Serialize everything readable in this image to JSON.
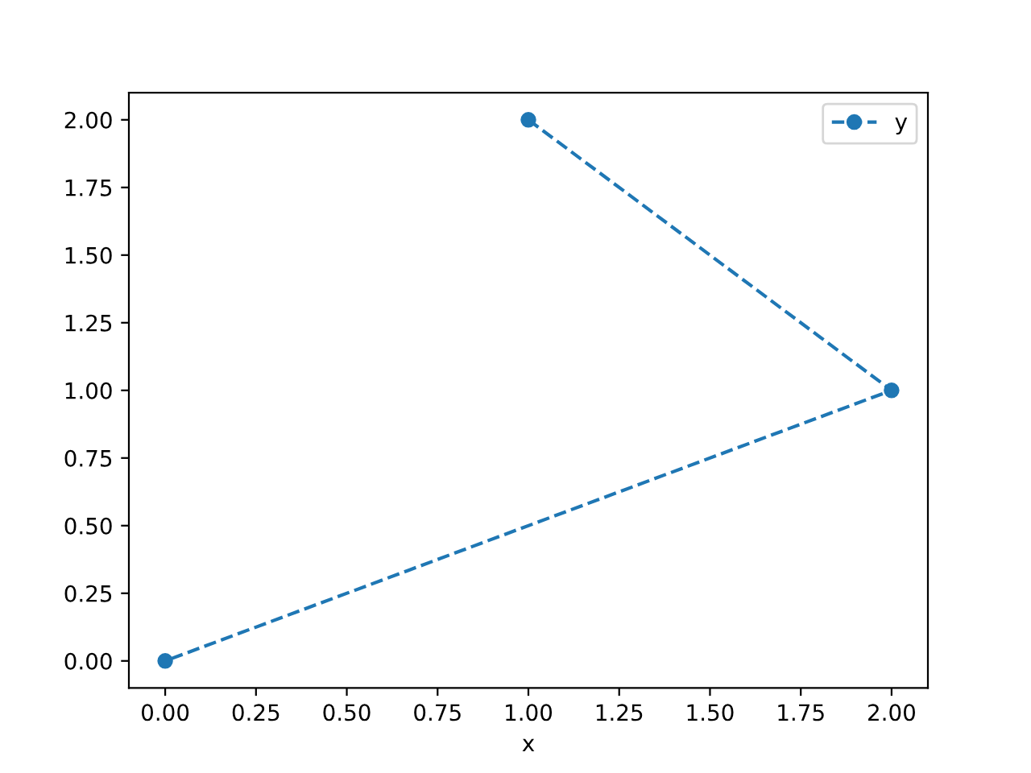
{
  "chart_data": {
    "type": "line",
    "xlabel": "x",
    "x": [
      1,
      2,
      0
    ],
    "series": [
      {
        "name": "y",
        "color": "#1f77b4",
        "values": [
          2,
          1,
          0
        ]
      }
    ],
    "xlim": [
      -0.1,
      2.1
    ],
    "ylim": [
      -0.1,
      2.1
    ],
    "xticks": [
      {
        "value": 0,
        "label": "0.00"
      },
      {
        "value": 0.25,
        "label": "0.25"
      },
      {
        "value": 0.5,
        "label": "0.50"
      },
      {
        "value": 0.75,
        "label": "0.75"
      },
      {
        "value": 1,
        "label": "1.00"
      },
      {
        "value": 1.25,
        "label": "1.25"
      },
      {
        "value": 1.5,
        "label": "1.50"
      },
      {
        "value": 1.75,
        "label": "1.75"
      },
      {
        "value": 2,
        "label": "2.00"
      }
    ],
    "yticks": [
      {
        "value": 0,
        "label": "0.00"
      },
      {
        "value": 0.25,
        "label": "0.25"
      },
      {
        "value": 0.5,
        "label": "0.50"
      },
      {
        "value": 0.75,
        "label": "0.75"
      },
      {
        "value": 1,
        "label": "1.00"
      },
      {
        "value": 1.25,
        "label": "1.25"
      },
      {
        "value": 1.5,
        "label": "1.50"
      },
      {
        "value": 1.75,
        "label": "1.75"
      },
      {
        "value": 2,
        "label": "2.00"
      }
    ],
    "legend": "top right",
    "marker": "circle",
    "line_style": "dashed"
  }
}
